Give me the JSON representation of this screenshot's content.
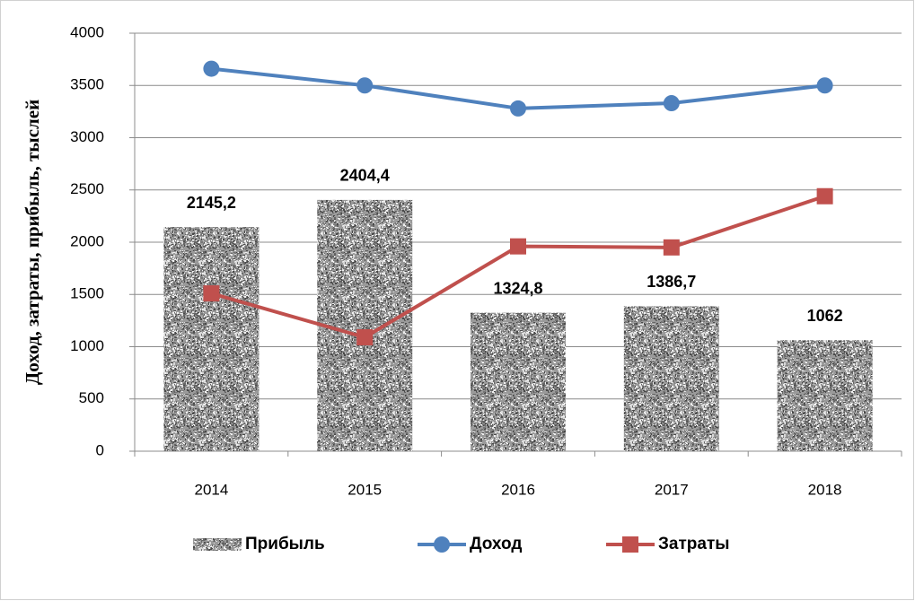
{
  "chart_data": {
    "type": "bar",
    "y_label": "Доход, затраты, прибыль, тыслей",
    "categories": [
      "2014",
      "2015",
      "2016",
      "2017",
      "2018"
    ],
    "series": [
      {
        "name": "Прибыль",
        "type": "bar",
        "color": "#8c8c8c",
        "values": [
          2145.2,
          2404.4,
          1324.8,
          1386.7,
          1062
        ],
        "value_labels": [
          "2145,2",
          "2404,4",
          "1324,8",
          "1386,7",
          "1062"
        ]
      },
      {
        "name": "Доход",
        "type": "line",
        "marker": "circle",
        "color": "#4f81bd",
        "values": [
          3660,
          3500,
          3280,
          3330,
          3500
        ]
      },
      {
        "name": "Затраты",
        "type": "line",
        "marker": "square",
        "color": "#c0504d",
        "values": [
          1510,
          1090,
          1960,
          1950,
          2440
        ]
      }
    ],
    "ylim": [
      0,
      4000
    ],
    "yticks": [
      0,
      500,
      1000,
      1500,
      2000,
      2500,
      3000,
      3500,
      4000
    ],
    "grid": true,
    "legend": "bottom"
  }
}
